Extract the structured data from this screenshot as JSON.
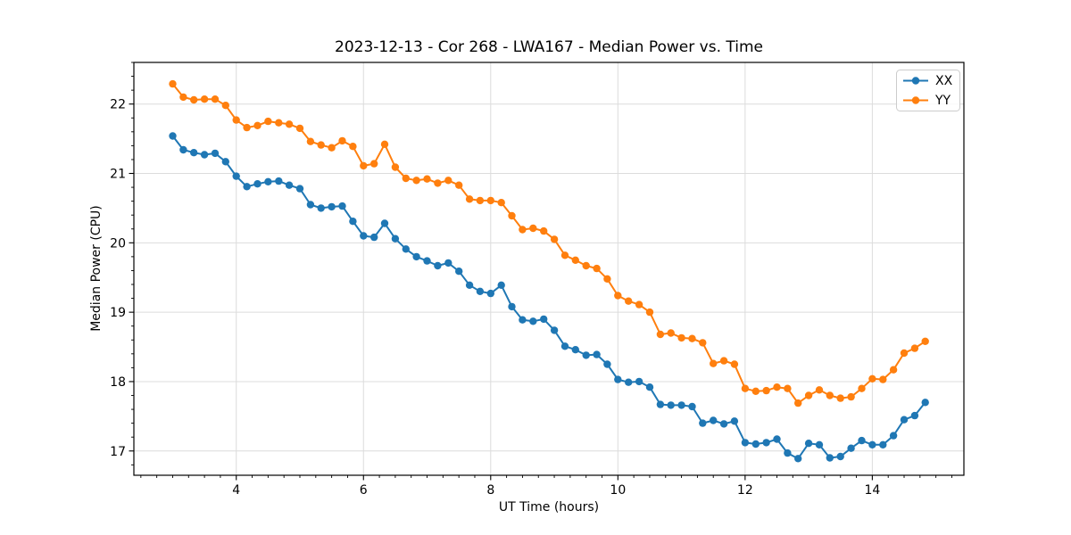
{
  "chart_data": {
    "type": "line",
    "title": "2023-12-13 - Cor 268 - LWA167 - Median Power vs. Time",
    "xlabel": "UT Time (hours)",
    "ylabel": "Median Power (CPU)",
    "xlim": [
      2.39,
      15.44
    ],
    "ylim": [
      16.65,
      22.6
    ],
    "x_ticks": [
      4,
      6,
      8,
      10,
      12,
      14
    ],
    "y_ticks": [
      17,
      18,
      19,
      20,
      21,
      22
    ],
    "x_minor_step": 0.25,
    "y_minor_step": 0.2,
    "grid": true,
    "grid_color": "#dcdcdc",
    "legend_position": "upper right",
    "legend": [
      "XX",
      "YY"
    ],
    "colors": {
      "XX": "#1f77b4",
      "YY": "#ff7f0e"
    },
    "x": [
      3.0,
      3.167,
      3.333,
      3.5,
      3.667,
      3.833,
      4.0,
      4.167,
      4.333,
      4.5,
      4.667,
      4.833,
      5.0,
      5.167,
      5.333,
      5.5,
      5.667,
      5.833,
      6.0,
      6.167,
      6.333,
      6.5,
      6.667,
      6.833,
      7.0,
      7.167,
      7.333,
      7.5,
      7.667,
      7.833,
      8.0,
      8.167,
      8.333,
      8.5,
      8.667,
      8.833,
      9.0,
      9.167,
      9.333,
      9.5,
      9.667,
      9.833,
      10.0,
      10.167,
      10.333,
      10.5,
      10.667,
      10.833,
      11.0,
      11.167,
      11.333,
      11.5,
      11.667,
      11.833,
      12.0,
      12.167,
      12.333,
      12.5,
      12.667,
      12.833,
      13.0,
      13.167,
      13.333,
      13.5,
      13.667,
      13.833,
      14.0,
      14.167,
      14.333,
      14.5,
      14.667,
      14.833
    ],
    "series": [
      {
        "name": "XX",
        "color": "#1f77b4",
        "values": [
          21.54,
          21.34,
          21.3,
          21.27,
          21.29,
          21.17,
          20.96,
          20.81,
          20.85,
          20.88,
          20.89,
          20.83,
          20.78,
          20.55,
          20.5,
          20.52,
          20.53,
          20.31,
          20.1,
          20.08,
          20.28,
          20.06,
          19.91,
          19.8,
          19.74,
          19.67,
          19.71,
          19.59,
          19.39,
          19.3,
          19.27,
          19.39,
          19.08,
          18.89,
          18.87,
          18.9,
          18.74,
          18.51,
          18.46,
          18.38,
          18.39,
          18.25,
          18.03,
          17.99,
          18.0,
          17.92,
          17.67,
          17.66,
          17.66,
          17.64,
          17.4,
          17.44,
          17.39,
          17.43,
          17.12,
          17.1,
          17.12,
          17.17,
          16.97,
          16.89,
          17.11,
          17.09,
          16.9,
          16.92,
          17.04,
          17.15,
          17.09,
          17.09,
          17.22,
          17.45,
          17.51,
          17.7
        ]
      },
      {
        "name": "YY",
        "color": "#ff7f0e",
        "values": [
          22.29,
          22.1,
          22.06,
          22.07,
          22.07,
          21.98,
          21.77,
          21.66,
          21.69,
          21.75,
          21.73,
          21.71,
          21.65,
          21.46,
          21.41,
          21.37,
          21.47,
          21.39,
          21.11,
          21.14,
          21.42,
          21.09,
          20.93,
          20.9,
          20.92,
          20.86,
          20.9,
          20.83,
          20.63,
          20.61,
          20.61,
          20.58,
          20.39,
          20.19,
          20.21,
          20.17,
          20.05,
          19.82,
          19.75,
          19.67,
          19.63,
          19.48,
          19.24,
          19.16,
          19.11,
          19.0,
          18.68,
          18.7,
          18.63,
          18.62,
          18.56,
          18.26,
          18.3,
          18.25,
          17.9,
          17.86,
          17.87,
          17.92,
          17.9,
          17.69,
          17.8,
          17.88,
          17.8,
          17.76,
          17.78,
          17.9,
          18.04,
          18.03,
          18.17,
          18.41,
          18.48,
          18.58
        ]
      }
    ]
  }
}
